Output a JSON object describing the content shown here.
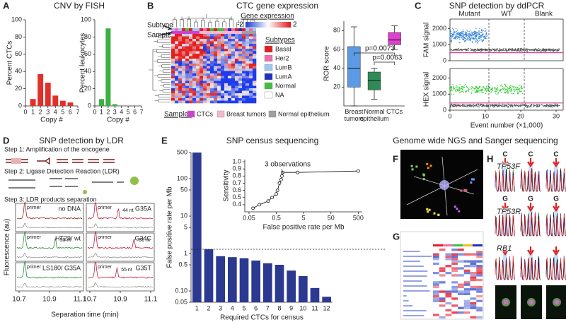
{
  "panel_labels": [
    "A",
    "B",
    "C",
    "D",
    "E",
    "F",
    "G",
    "H"
  ],
  "titles": [
    "CNV by FISH",
    "CTC gene expression",
    "SNP detection by ddPCR",
    "SNP detection by LDR",
    "SNP census sequencing",
    "Genome wide NGS and Sanger sequencing"
  ],
  "chart_data": [
    {
      "type": "bar",
      "x": [
        1,
        2,
        3,
        4,
        5,
        6
      ],
      "values": [
        8,
        37,
        27,
        12,
        6,
        4
      ],
      "color": "#e0302a",
      "xlim": [
        0,
        7
      ],
      "xticks": [
        0,
        1,
        2,
        3,
        4,
        5,
        6,
        7
      ],
      "ylim": [
        0,
        100
      ],
      "yticks": [
        0,
        20,
        40,
        60,
        80,
        100
      ],
      "x_label": "Copy #",
      "y_label": "Percent CTCs"
    },
    {
      "type": "bar",
      "x": [
        1,
        2,
        3
      ],
      "values": [
        8,
        90,
        2
      ],
      "color": "#3cb043",
      "xlim": [
        0,
        7
      ],
      "xticks": [
        0,
        1,
        2,
        3,
        4,
        5,
        6,
        7
      ],
      "ylim": [
        0,
        100
      ],
      "yticks": [
        0,
        20,
        40,
        60,
        80,
        100
      ],
      "x_label": "Copy #",
      "y_label": "Percent leukocytes"
    },
    {
      "type": "box",
      "categories": [
        "Breast tumors",
        "Normal epithelium",
        "CTCs"
      ],
      "boxes": [
        {
          "min": 0,
          "q1": 20,
          "median": 40,
          "q3": 63,
          "max": 84
        },
        {
          "min": 7,
          "q1": 17,
          "median": 27,
          "q3": 36,
          "max": 40
        },
        {
          "min": 60,
          "q1": 65,
          "median": 70,
          "q3": 78,
          "max": 85
        }
      ],
      "colors": [
        "#5b9be6",
        "#2e8b57",
        "#e040d0"
      ],
      "ylim": [
        0,
        90
      ],
      "yticks": [
        20,
        40,
        60,
        80
      ],
      "y_label": "ROR score",
      "annotations": [
        "p=0.0073",
        "p=0.0063"
      ]
    },
    {
      "type": "scatter",
      "xlim": [
        0,
        32
      ],
      "ylim": [
        0,
        2600
      ],
      "yticks": [
        0,
        1000,
        2000
      ],
      "y_label": "FAM signal",
      "groups": [
        "Mutant",
        "WT",
        "Blank"
      ],
      "dividers": [
        11,
        21
      ],
      "threshold": 500,
      "threshold_color": "#e0409a",
      "clusters": [
        {
          "x": [
            0,
            10.5
          ],
          "y": [
            1000,
            2100
          ],
          "color": "#2f7fd8"
        },
        {
          "x": [
            0,
            31
          ],
          "y": [
            550,
            800
          ],
          "color": "#555555"
        }
      ]
    },
    {
      "type": "scatter",
      "xlim": [
        0,
        32
      ],
      "xticks": [
        0,
        10,
        20,
        30
      ],
      "ylim": [
        0,
        2600
      ],
      "yticks": [
        0,
        1000,
        2000
      ],
      "x_label": "Event number (×1,000)",
      "y_label": "HEX signal",
      "dividers": [
        11,
        21
      ],
      "threshold": 450,
      "threshold_color": "#e0409a",
      "clusters": [
        {
          "x": [
            0,
            20.5
          ],
          "y": [
            900,
            1700
          ],
          "color": "#33cc33"
        },
        {
          "x": [
            0,
            31
          ],
          "y": [
            150,
            420
          ],
          "color": "#555555"
        }
      ]
    },
    {
      "type": "bar",
      "log_y": true,
      "categories": [
        "1",
        "2",
        "3",
        "4",
        "5",
        "6",
        "7",
        "8",
        "9",
        "10",
        "11",
        "12"
      ],
      "values": [
        500,
        1.3,
        0.85,
        0.8,
        0.75,
        0.65,
        0.55,
        0.5,
        0.35,
        0.25,
        0.12,
        0.07
      ],
      "color": "#2b3990",
      "ylim": [
        0.05,
        500
      ],
      "yticks": [
        0.05,
        {
          "value": 0.1,
          "label": "0.10"
        },
        0.5,
        1,
        5,
        10,
        50,
        100,
        500
      ],
      "threshold": 1.3,
      "x_label": "Required CTCs for census",
      "y_label": "False positive rate per Mb"
    },
    {
      "type": "line",
      "log_x": true,
      "x": [
        0.07,
        0.12,
        0.25,
        0.35,
        0.5,
        0.55,
        0.65,
        0.75,
        0.8,
        0.85,
        3,
        500
      ],
      "values": [
        0.35,
        0.4,
        0.45,
        0.5,
        0.55,
        0.6,
        0.7,
        0.75,
        0.8,
        0.85,
        0.85,
        0.87
      ],
      "xlim": [
        0.035,
        700
      ],
      "xticks": [
        0.05,
        0.5,
        5,
        50,
        500
      ],
      "ylim": [
        0.3,
        1.03
      ],
      "yticks": [
        0.4,
        0.5,
        0.6,
        0.7,
        0.8,
        0.9,
        {
          "value": 1,
          "label": "1.0"
        }
      ],
      "x_label": "False positive rate per Mb",
      "y_label": "Sensitivity",
      "annotations": [
        "3 observations"
      ]
    }
  ],
  "panel_b": {
    "gene_expression_label": "Gene expression",
    "color_scale": [
      -2,
      2
    ],
    "subtypes_label": "Subtypes",
    "subtypes": [
      {
        "name": "Basal",
        "color": "#e02020"
      },
      {
        "name": "Her2",
        "color": "#f06eaa"
      },
      {
        "name": "LumB",
        "color": "#9ec8f0"
      },
      {
        "name": "LumA",
        "color": "#2030c0"
      },
      {
        "name": "Normal",
        "color": "#40c040"
      },
      {
        "name": "NA",
        "color": "#ffffff"
      }
    ],
    "samples_label": "Samples",
    "samples": [
      {
        "name": "CTCs",
        "color": "#d040d0"
      },
      {
        "name": "Breast tumors",
        "color": "#f4b8d0"
      },
      {
        "name": "Normal epithelium",
        "color": "#a0a0a0"
      }
    ],
    "pointers": [
      "Subtype",
      "Sample"
    ]
  },
  "panel_d": {
    "steps": [
      "Step 1: Amplification of the oncogene",
      "Step 2: Ligase Detection Reaction (LDR)",
      "Step 3: LDR products separation"
    ],
    "primer_label": "primer",
    "traces": [
      {
        "label": "no DNA"
      },
      {
        "label": "G35A",
        "peak": "44 nt"
      },
      {
        "label": "HT29/ wt",
        "peak": "50 nt"
      },
      {
        "label": "G34C",
        "peak": "61 nt"
      },
      {
        "label": "LS180/ G35A"
      },
      {
        "label": "G35T",
        "peak": "55 nt"
      }
    ],
    "x_ticks": [
      10.7,
      10.9,
      11.1
    ],
    "x_label": "Separation time (min)",
    "y_label": "Fluorescence (au)"
  },
  "panel_h": {
    "genes": [
      "TP53F",
      "TP53R",
      "RB1"
    ],
    "bases": [
      [
        "C",
        "C",
        "C"
      ],
      [
        "G",
        "G",
        "G"
      ]
    ]
  }
}
